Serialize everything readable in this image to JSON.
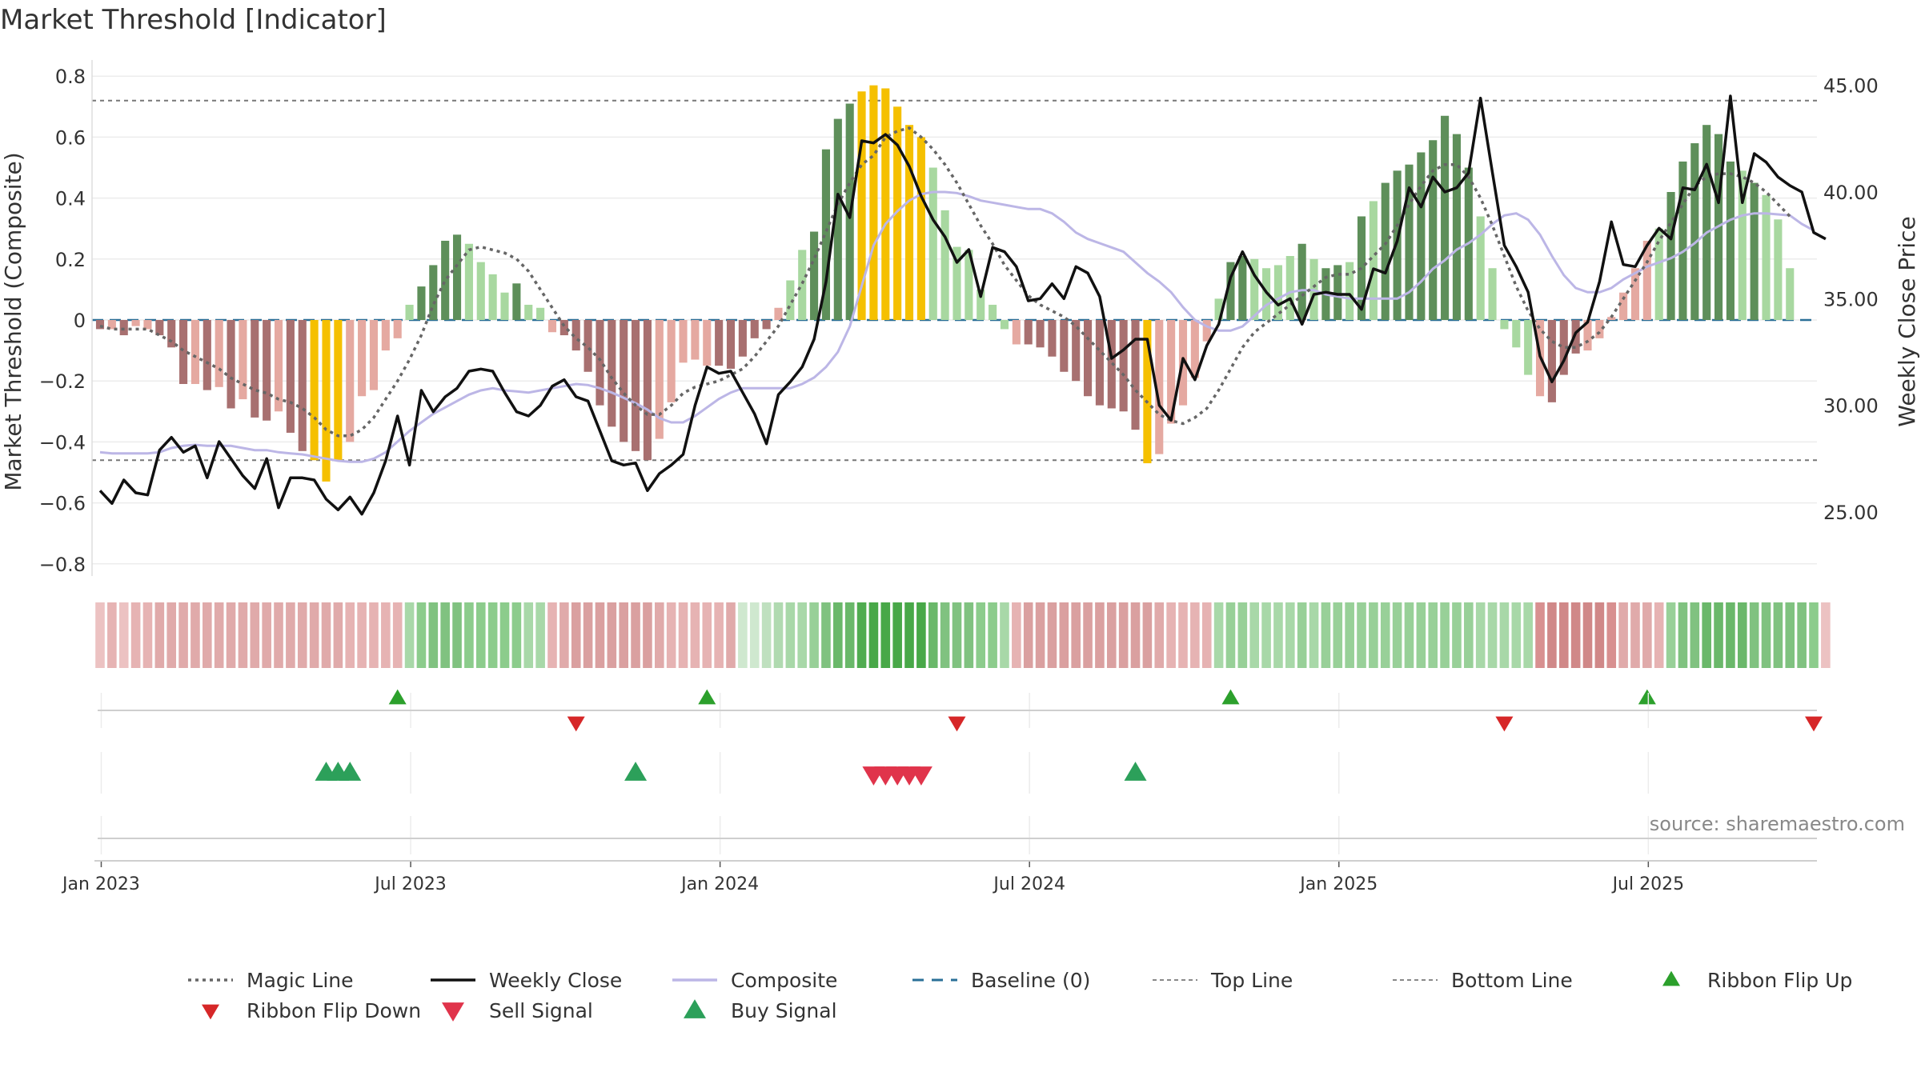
{
  "title": "Market Threshold [Indicator]",
  "source": "source: sharemaestro.com",
  "chart_data": {
    "type": "bar",
    "title": "Market Threshold [Indicator]",
    "ylabel_left": "Market Threshold (Composite)",
    "ylabel_right": "Weekly Close Price",
    "ylim_left": [
      -0.84,
      0.84
    ],
    "ylim_right": [
      22.0,
      46.0
    ],
    "yticks_left": [
      "0.8",
      "0.6",
      "0.4",
      "0.2",
      "0",
      "−0.2",
      "−0.4",
      "−0.6",
      "−0.8"
    ],
    "yticks_left_values": [
      0.8,
      0.6,
      0.4,
      0.2,
      0,
      -0.2,
      -0.4,
      -0.6,
      -0.8
    ],
    "yticks_right": [
      "45.00",
      "40.00",
      "35.00",
      "30.00",
      "25.00"
    ],
    "yticks_right_values": [
      45,
      40,
      35,
      30,
      25
    ],
    "xticks": [
      "Jan 2023",
      "Jul 2023",
      "Jan 2024",
      "Jul 2024",
      "Jan 2025",
      "Jul 2025"
    ],
    "xticks_week": [
      0,
      26,
      52,
      78,
      104,
      130
    ],
    "x_start": "2023-01-02",
    "week_count": 145,
    "top_line": 0.72,
    "bottom_line": -0.46,
    "baseline": 0,
    "composite": [
      -0.03,
      -0.03,
      -0.05,
      -0.02,
      -0.03,
      -0.05,
      -0.09,
      -0.21,
      -0.21,
      -0.23,
      -0.22,
      -0.29,
      -0.26,
      -0.32,
      -0.33,
      -0.3,
      -0.37,
      -0.43,
      -0.46,
      -0.53,
      -0.46,
      -0.4,
      -0.25,
      -0.23,
      -0.1,
      -0.06,
      0.05,
      0.11,
      0.18,
      0.26,
      0.28,
      0.25,
      0.19,
      0.15,
      0.09,
      0.12,
      0.05,
      0.04,
      -0.04,
      -0.05,
      -0.1,
      -0.17,
      -0.28,
      -0.35,
      -0.4,
      -0.43,
      -0.46,
      -0.39,
      -0.27,
      -0.14,
      -0.13,
      -0.15,
      -0.15,
      -0.16,
      -0.12,
      -0.06,
      -0.03,
      0.04,
      0.13,
      0.23,
      0.29,
      0.56,
      0.66,
      0.71,
      0.75,
      0.77,
      0.76,
      0.7,
      0.64,
      0.6,
      0.5,
      0.36,
      0.24,
      0.23,
      0.1,
      0.05,
      -0.03,
      -0.08,
      -0.08,
      -0.09,
      -0.12,
      -0.17,
      -0.2,
      -0.25,
      -0.28,
      -0.29,
      -0.3,
      -0.36,
      -0.47,
      -0.44,
      -0.34,
      -0.28,
      -0.19,
      -0.07,
      0.07,
      0.19,
      0.21,
      0.2,
      0.17,
      0.18,
      0.21,
      0.25,
      0.2,
      0.17,
      0.18,
      0.19,
      0.34,
      0.39,
      0.45,
      0.49,
      0.51,
      0.55,
      0.59,
      0.67,
      0.61,
      0.5,
      0.34,
      0.17,
      -0.03,
      -0.09,
      -0.18,
      -0.25,
      -0.27,
      -0.18,
      -0.11,
      -0.1,
      -0.06,
      0.01,
      0.09,
      0.17,
      0.26,
      0.3,
      0.42,
      0.52,
      0.58,
      0.64,
      0.61,
      0.52,
      0.49,
      0.45,
      0.41,
      0.33,
      0.17
    ],
    "bar_colors": [
      "#a87070",
      "#e5a9a1",
      "#a87070",
      "#e5a9a1",
      "#e5a9a1",
      "#a87070",
      "#a87070",
      "#a87070",
      "#e5a9a1",
      "#a87070",
      "#e5a9a1",
      "#a87070",
      "#e5a9a1",
      "#a87070",
      "#a87070",
      "#e5a9a1",
      "#a87070",
      "#a87070",
      "#f5c000",
      "#f5c000",
      "#f5c000",
      "#e5a9a1",
      "#e5a9a1",
      "#e5a9a1",
      "#e5a9a1",
      "#e5a9a1",
      "#a8d8a0",
      "#5e8f5a",
      "#5e8f5a",
      "#5e8f5a",
      "#5e8f5a",
      "#a8d8a0",
      "#a8d8a0",
      "#a8d8a0",
      "#a8d8a0",
      "#5e8f5a",
      "#a8d8a0",
      "#a8d8a0",
      "#e5a9a1",
      "#a87070",
      "#a87070",
      "#a87070",
      "#a87070",
      "#a87070",
      "#a87070",
      "#a87070",
      "#a87070",
      "#e5a9a1",
      "#e5a9a1",
      "#e5a9a1",
      "#e5a9a1",
      "#e5a9a1",
      "#a87070",
      "#a87070",
      "#a87070",
      "#a87070",
      "#a87070",
      "#e5a9a1",
      "#a8d8a0",
      "#a8d8a0",
      "#5e8f5a",
      "#5e8f5a",
      "#5e8f5a",
      "#5e8f5a",
      "#f5c000",
      "#f5c000",
      "#f5c000",
      "#f5c000",
      "#f5c000",
      "#f5c000",
      "#a8d8a0",
      "#a8d8a0",
      "#a8d8a0",
      "#a8d8a0",
      "#a8d8a0",
      "#a8d8a0",
      "#a8d8a0",
      "#e5a9a1",
      "#a87070",
      "#a87070",
      "#a87070",
      "#a87070",
      "#a87070",
      "#a87070",
      "#a87070",
      "#a87070",
      "#a87070",
      "#a87070",
      "#f5c000",
      "#e5a9a1",
      "#e5a9a1",
      "#e5a9a1",
      "#e5a9a1",
      "#e5a9a1",
      "#a8d8a0",
      "#5e8f5a",
      "#5e8f5a",
      "#a8d8a0",
      "#a8d8a0",
      "#a8d8a0",
      "#a8d8a0",
      "#5e8f5a",
      "#a8d8a0",
      "#5e8f5a",
      "#5e8f5a",
      "#a8d8a0",
      "#5e8f5a",
      "#a8d8a0",
      "#5e8f5a",
      "#5e8f5a",
      "#5e8f5a",
      "#5e8f5a",
      "#5e8f5a",
      "#5e8f5a",
      "#5e8f5a",
      "#5e8f5a",
      "#a8d8a0",
      "#a8d8a0",
      "#a8d8a0",
      "#a8d8a0",
      "#a8d8a0",
      "#e5a9a1",
      "#a87070",
      "#a87070",
      "#a87070",
      "#e5a9a1",
      "#e5a9a1",
      "#e5a9a1",
      "#e5a9a1",
      "#e5a9a1",
      "#e5a9a1",
      "#a8d8a0",
      "#5e8f5a",
      "#5e8f5a",
      "#5e8f5a",
      "#5e8f5a",
      "#5e8f5a",
      "#5e8f5a",
      "#a8d8a0",
      "#5e8f5a",
      "#a8d8a0",
      "#a8d8a0",
      "#a8d8a0",
      "#a8d8a0",
      "#a8d8a0"
    ],
    "ribbon_colors": [
      "#ecc2c2",
      "#e6b3b3",
      "#ecc2c2",
      "#e6b3b3",
      "#e6b3b3",
      "#e0aaaa",
      "#e0aaaa",
      "#e0aaaa",
      "#e0aaaa",
      "#e0aaaa",
      "#e0aaaa",
      "#e0aaaa",
      "#e0aaaa",
      "#e0aaaa",
      "#e0aaaa",
      "#e0aaaa",
      "#e0aaaa",
      "#e0aaaa",
      "#e0aaaa",
      "#e0aaaa",
      "#e0aaaa",
      "#e6b3b3",
      "#e6b3b3",
      "#e6b3b3",
      "#e6b3b3",
      "#e6b3b3",
      "#a8d8a8",
      "#8ccc8c",
      "#80c280",
      "#80c280",
      "#80c280",
      "#8ccc8c",
      "#8ccc8c",
      "#8ccc8c",
      "#8ccc8c",
      "#8ccc8c",
      "#a8d8a8",
      "#a8d8a8",
      "#e6b3b3",
      "#e0aaaa",
      "#daa0a0",
      "#daa0a0",
      "#daa0a0",
      "#daa0a0",
      "#daa0a0",
      "#daa0a0",
      "#daa0a0",
      "#e0aaaa",
      "#e6b3b3",
      "#e6b3b3",
      "#e6b3b3",
      "#e6b3b3",
      "#e6b3b3",
      "#e0aaaa",
      "#cfe8cf",
      "#cfe8cf",
      "#bfe0bf",
      "#b0dab0",
      "#a8d8a8",
      "#a8d8a8",
      "#98d098",
      "#80c280",
      "#6ab86a",
      "#6ab86a",
      "#50ac50",
      "#48a848",
      "#48a848",
      "#48a848",
      "#48a848",
      "#48a848",
      "#6ab86a",
      "#80c280",
      "#80c280",
      "#80c280",
      "#8ccc8c",
      "#8ccc8c",
      "#a8d8a8",
      "#e6b3b3",
      "#daa0a0",
      "#daa0a0",
      "#daa0a0",
      "#daa0a0",
      "#daa0a0",
      "#daa0a0",
      "#daa0a0",
      "#daa0a0",
      "#daa0a0",
      "#daa0a0",
      "#daa0a0",
      "#e0aaaa",
      "#e6b3b3",
      "#e6b3b3",
      "#e6b3b3",
      "#e6b3b3",
      "#a8d8a8",
      "#98d098",
      "#98d098",
      "#a8d8a8",
      "#a8d8a8",
      "#a8d8a8",
      "#a8d8a8",
      "#98d098",
      "#a8d8a8",
      "#98d098",
      "#98d098",
      "#98d098",
      "#98d098",
      "#98d098",
      "#98d098",
      "#98d098",
      "#98d098",
      "#98d098",
      "#98d098",
      "#98d098",
      "#98d098",
      "#98d098",
      "#a8d8a8",
      "#a8d8a8",
      "#a8d8a8",
      "#a8d8a8",
      "#a8d8a8",
      "#d89090",
      "#d08888",
      "#d08888",
      "#d08888",
      "#d08888",
      "#d08888",
      "#d89090",
      "#e0aaaa",
      "#e0aaaa",
      "#e0aaaa",
      "#e6b3b3",
      "#98d098",
      "#80c280",
      "#80c280",
      "#6ab86a",
      "#6ab86a",
      "#6ab86a",
      "#6ab86a",
      "#80c280",
      "#80c280",
      "#80c280",
      "#80c280",
      "#80c280",
      "#8ccc8c",
      "#ecc2c2"
    ],
    "magic_line": [
      -0.02,
      -0.03,
      -0.03,
      -0.03,
      -0.03,
      -0.05,
      -0.07,
      -0.1,
      -0.12,
      -0.14,
      -0.16,
      -0.19,
      -0.21,
      -0.23,
      -0.24,
      -0.26,
      -0.27,
      -0.29,
      -0.32,
      -0.36,
      -0.38,
      -0.38,
      -0.36,
      -0.32,
      -0.26,
      -0.2,
      -0.13,
      -0.05,
      0.05,
      0.13,
      0.18,
      0.23,
      0.24,
      0.23,
      0.22,
      0.2,
      0.16,
      0.1,
      0.04,
      -0.02,
      -0.06,
      -0.09,
      -0.13,
      -0.19,
      -0.24,
      -0.28,
      -0.31,
      -0.31,
      -0.28,
      -0.24,
      -0.22,
      -0.21,
      -0.2,
      -0.18,
      -0.16,
      -0.12,
      -0.07,
      -0.02,
      0.05,
      0.12,
      0.2,
      0.29,
      0.38,
      0.45,
      0.51,
      0.54,
      0.6,
      0.62,
      0.63,
      0.6,
      0.56,
      0.51,
      0.45,
      0.38,
      0.31,
      0.25,
      0.18,
      0.13,
      0.08,
      0.05,
      0.03,
      0.01,
      -0.02,
      -0.06,
      -0.1,
      -0.14,
      -0.18,
      -0.23,
      -0.27,
      -0.31,
      -0.33,
      -0.34,
      -0.32,
      -0.29,
      -0.23,
      -0.16,
      -0.09,
      -0.04,
      -0.01,
      0.02,
      0.05,
      0.08,
      0.11,
      0.14,
      0.15,
      0.15,
      0.17,
      0.21,
      0.25,
      0.31,
      0.38,
      0.44,
      0.49,
      0.51,
      0.51,
      0.47,
      0.4,
      0.31,
      0.21,
      0.11,
      0.03,
      -0.03,
      -0.07,
      -0.09,
      -0.09,
      -0.07,
      -0.04,
      0.01,
      0.07,
      0.13,
      0.19,
      0.26,
      0.32,
      0.38,
      0.44,
      0.47,
      0.48,
      0.48,
      0.47,
      0.45,
      0.42,
      0.38,
      0.34
    ],
    "weekly_close": [
      26.0,
      25.4,
      26.5,
      25.9,
      25.8,
      27.9,
      28.5,
      27.8,
      28.1,
      26.6,
      28.3,
      27.5,
      26.7,
      26.1,
      27.5,
      25.2,
      26.6,
      26.6,
      26.5,
      25.6,
      25.1,
      25.7,
      24.9,
      25.9,
      27.4,
      29.5,
      27.2,
      30.7,
      29.7,
      30.4,
      30.8,
      31.6,
      31.7,
      31.6,
      30.6,
      29.7,
      29.5,
      30.0,
      30.9,
      31.2,
      30.4,
      30.2,
      28.8,
      27.4,
      27.2,
      27.3,
      26.0,
      26.8,
      27.2,
      27.7,
      30.0,
      31.8,
      31.5,
      31.6,
      30.6,
      29.6,
      28.2,
      30.5,
      31.1,
      31.8,
      33.1,
      35.8,
      39.9,
      38.8,
      42.4,
      42.3,
      42.7,
      42.2,
      41.2,
      39.8,
      38.7,
      37.9,
      36.7,
      37.3,
      35.1,
      37.4,
      37.2,
      36.5,
      34.9,
      35.0,
      35.7,
      35.0,
      36.5,
      36.2,
      35.1,
      32.2,
      32.6,
      33.1,
      33.1,
      30.0,
      29.3,
      32.2,
      31.2,
      32.8,
      33.8,
      36.0,
      37.2,
      36.1,
      35.3,
      34.7,
      35.0,
      33.8,
      35.2,
      35.3,
      35.2,
      35.2,
      34.5,
      36.4,
      36.2,
      37.7,
      40.2,
      39.3,
      40.7,
      40.0,
      40.2,
      40.9,
      44.4,
      40.9,
      37.5,
      36.5,
      35.3,
      32.3,
      31.1,
      32.1,
      33.4,
      33.9,
      35.8,
      38.6,
      36.6,
      36.5,
      37.5,
      38.3,
      37.8,
      40.2,
      40.1,
      41.3,
      39.5,
      44.5,
      39.5,
      41.8,
      41.4,
      40.7,
      40.3,
      40.0,
      38.1,
      37.8
    ],
    "composite_line": [
      27.8,
      27.75,
      27.75,
      27.75,
      27.75,
      27.8,
      28.0,
      28.1,
      28.15,
      28.1,
      28.1,
      28.1,
      28.0,
      27.9,
      27.9,
      27.8,
      27.75,
      27.7,
      27.6,
      27.5,
      27.4,
      27.35,
      27.35,
      27.5,
      27.8,
      28.3,
      28.8,
      29.2,
      29.6,
      29.9,
      30.2,
      30.5,
      30.7,
      30.8,
      30.7,
      30.65,
      30.6,
      30.7,
      30.8,
      30.9,
      31.0,
      30.95,
      30.8,
      30.6,
      30.35,
      30.1,
      29.8,
      29.4,
      29.2,
      29.2,
      29.5,
      29.9,
      30.3,
      30.6,
      30.8,
      30.8,
      30.8,
      30.8,
      30.8,
      31.0,
      31.3,
      31.8,
      32.5,
      33.7,
      35.6,
      37.5,
      38.5,
      39.1,
      39.6,
      39.9,
      40.0,
      40.0,
      39.95,
      39.8,
      39.6,
      39.5,
      39.4,
      39.3,
      39.2,
      39.2,
      39.0,
      38.6,
      38.1,
      37.8,
      37.6,
      37.4,
      37.2,
      36.7,
      36.2,
      35.8,
      35.3,
      34.6,
      34.0,
      33.7,
      33.5,
      33.5,
      33.7,
      34.2,
      34.7,
      35.0,
      35.3,
      35.4,
      35.4,
      35.2,
      35.1,
      35.0,
      35.0,
      35.0,
      35.0,
      35.0,
      35.3,
      35.8,
      36.4,
      36.8,
      37.3,
      37.6,
      38.0,
      38.5,
      38.9,
      39.0,
      38.7,
      38.0,
      37.0,
      36.1,
      35.5,
      35.3,
      35.3,
      35.5,
      35.9,
      36.2,
      36.5,
      36.7,
      36.9,
      37.2,
      37.6,
      38.1,
      38.4,
      38.7,
      38.9,
      39.0,
      39.0,
      38.95,
      38.9,
      38.5,
      38.2
    ],
    "ribbon_flip_up": [
      25,
      51,
      95,
      130
    ],
    "ribbon_flip_down": [
      40,
      72,
      118,
      144
    ],
    "buy_signals": [
      19,
      20,
      21,
      45,
      87
    ],
    "sell_signals": [
      65,
      66,
      67,
      68,
      69
    ],
    "legend": [
      {
        "label": "Magic Line",
        "kind": "dotted",
        "color": "#666666"
      },
      {
        "label": "Weekly Close",
        "kind": "solid",
        "color": "#111111"
      },
      {
        "label": "Composite",
        "kind": "solid",
        "color": "#bcb6e6"
      },
      {
        "label": "Baseline (0)",
        "kind": "dashed",
        "color": "#2a6f97"
      },
      {
        "label": "Top Line",
        "kind": "dotted-fine",
        "color": "#888888"
      },
      {
        "label": "Bottom Line",
        "kind": "dotted-fine",
        "color": "#888888"
      },
      {
        "label": "Ribbon Flip Up",
        "kind": "tri-up",
        "color": "#2ca02c"
      },
      {
        "label": "Ribbon Flip Down",
        "kind": "tri-down",
        "color": "#d62728"
      },
      {
        "label": "Sell Signal",
        "kind": "tri-down-large",
        "color": "#e0344b"
      },
      {
        "label": "Buy Signal",
        "kind": "tri-up-large",
        "color": "#2ca05a"
      }
    ],
    "grid": true,
    "legend_placement": "bottom"
  }
}
